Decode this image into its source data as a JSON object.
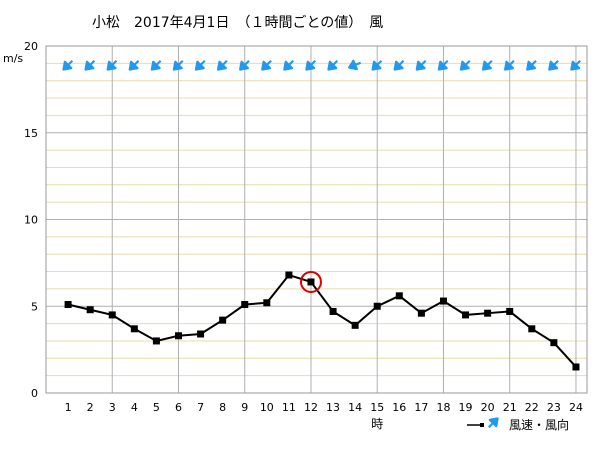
{
  "title": "小松　2017年4月1日　（１時間ごとの値）　風",
  "colors": {
    "grid_major": "#b0b0b0",
    "grid_minor": "#e8dcb0",
    "line": "#000000",
    "arrow": "#2299ee",
    "highlight": "#dd0000"
  },
  "chart_data": {
    "type": "line",
    "title": "小松　2017年4月1日　（１時間ごとの値）　風",
    "xlabel": "時",
    "ylabel": "m/s",
    "ylim": [
      0,
      20
    ],
    "xlim": [
      0,
      24.5
    ],
    "y_ticks": [
      "0",
      "5",
      "10",
      "15",
      "20"
    ],
    "x": [
      1,
      2,
      3,
      4,
      5,
      6,
      7,
      8,
      9,
      10,
      11,
      12,
      13,
      14,
      15,
      16,
      17,
      18,
      19,
      20,
      21,
      22,
      23,
      24
    ],
    "x_tick_labels": [
      "1",
      "2",
      "3",
      "4",
      "5",
      "6",
      "7",
      "8",
      "9",
      "10",
      "11",
      "12",
      "13",
      "14",
      "15",
      "16",
      "17",
      "18",
      "19",
      "20",
      "21",
      "22",
      "23",
      "24"
    ],
    "series": [
      {
        "name": "風速",
        "values": [
          5.1,
          4.8,
          4.5,
          3.7,
          3.0,
          3.3,
          3.4,
          4.2,
          5.1,
          5.2,
          6.8,
          6.4,
          4.7,
          3.9,
          5.0,
          5.6,
          4.6,
          5.3,
          4.5,
          4.6,
          4.7,
          3.7,
          2.9,
          1.5
        ]
      }
    ],
    "wind_direction_arrows": [
      "SW",
      "SW",
      "SW",
      "SW",
      "SW",
      "SW",
      "SW",
      "SW",
      "SW",
      "SW",
      "SW",
      "SW",
      "SW",
      "WSW",
      "SW",
      "SW",
      "SW",
      "SW",
      "SW",
      "SW",
      "SW",
      "SW",
      "SW",
      "SW"
    ],
    "highlighted_hour": 12,
    "grid": true,
    "legend": {
      "placement": "bottom-right",
      "speed_label": "風速",
      "direction_label": "風向",
      "separator": "・",
      "text": "風速・風向"
    }
  }
}
